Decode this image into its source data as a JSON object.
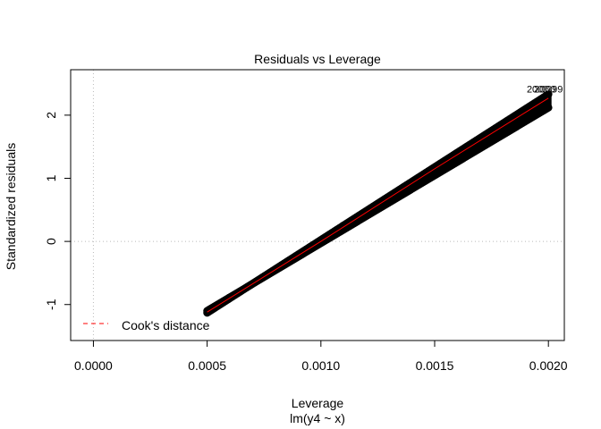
{
  "chart_data": {
    "type": "scatter",
    "title": "Residuals vs Leverage",
    "xlabel": "Leverage",
    "subtitle": "lm(y4 ~ x)",
    "ylabel": "Standardized residuals",
    "xlim": [
      -0.0001,
      0.00207
    ],
    "ylim": [
      -1.57,
      2.72
    ],
    "x_ticks": [
      0.0,
      0.0005,
      0.001,
      0.0015,
      0.002
    ],
    "x_tick_labels": [
      "0.0000",
      "0.0005",
      "0.0010",
      "0.0015",
      "0.0020"
    ],
    "y_ticks": [
      -1,
      0,
      1,
      2
    ],
    "y_tick_labels": [
      "-1",
      "0",
      "1",
      "2"
    ],
    "reference_lines": {
      "h": 0,
      "v": 0,
      "style": "dotted",
      "color": "#bbbbbb"
    },
    "series": [
      {
        "kind": "points",
        "color": "#000000",
        "bands": [
          {
            "from": [
              0.0005,
              -1.13
            ],
            "to": [
              0.002,
              2.33
            ]
          },
          {
            "from": [
              0.0005,
              -1.1
            ],
            "to": [
              0.002,
              2.12
            ]
          }
        ]
      },
      {
        "kind": "smooth",
        "color": "#ff0000",
        "points": [
          [
            0.0005,
            -1.12
          ],
          [
            0.001,
            0.0
          ],
          [
            0.0015,
            1.15
          ],
          [
            0.002,
            2.27
          ]
        ]
      }
    ],
    "point_labels": [
      {
        "text": "2001",
        "x": 0.002,
        "y": 2.33
      },
      {
        "text": "2000",
        "x": 0.002,
        "y": 2.33
      },
      {
        "text": "1999",
        "x": 0.002,
        "y": 2.33
      }
    ],
    "legend": {
      "position": "bottom-left",
      "entries": [
        {
          "label": "Cook's distance",
          "color": "#ff0000",
          "style": "dashed"
        }
      ]
    }
  }
}
